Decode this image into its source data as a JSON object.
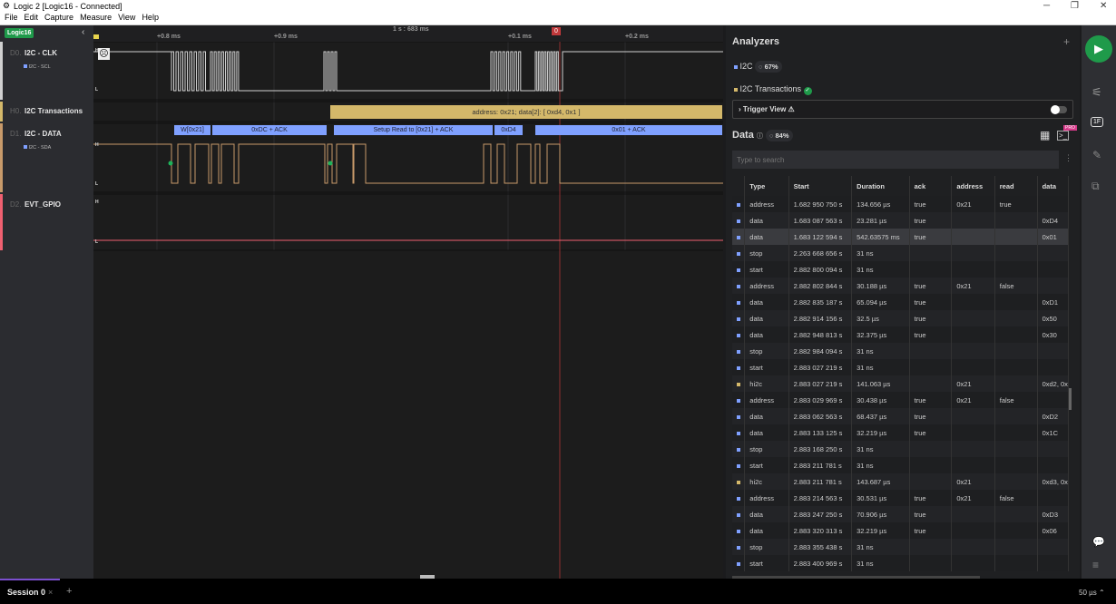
{
  "window": {
    "title": "Logic 2 [Logic16 - Connected]",
    "menu": [
      "File",
      "Edit",
      "Capture",
      "Measure",
      "View",
      "Help"
    ]
  },
  "device": {
    "badge": "Logic16"
  },
  "ruler": {
    "ticks": [
      "+0.8 ms",
      "+0.9 ms",
      "+0.1 ms",
      "+0.2 ms"
    ],
    "anchor": "1 s : 683 ms",
    "marker": "0"
  },
  "channels": [
    {
      "num": "D0.",
      "name": "I2C - CLK",
      "analyzer": "I2C - SCL",
      "color": "#d0d0d0"
    },
    {
      "num": "H0.",
      "name": "I2C Transactions",
      "color": "#d4b86a"
    },
    {
      "num": "D1.",
      "name": "I2C - DATA",
      "analyzer": "I2C - SDA",
      "color": "#c89a6a"
    },
    {
      "num": "D2.",
      "name": "EVT_GPIO",
      "color": "#f06070"
    }
  ],
  "levels": {
    "high": "H",
    "low": "L"
  },
  "transaction": "address: 0x21; data[2]: [ 0xd4, 0x1 ]",
  "frames": [
    "W[0x21]",
    "0xDC + ACK",
    "Setup Read to [0x21] + ACK",
    "0xD4",
    "0x01 + ACK"
  ],
  "analyzers": {
    "title": "Analyzers",
    "add": "+",
    "items": [
      {
        "name": "I2C",
        "progress": "67%",
        "color": "#7fa0ff"
      },
      {
        "name": "I2C Transactions",
        "color": "#d4b86a",
        "status": "complete"
      }
    ],
    "trigger": "Trigger View ⚠",
    "trigger_on": false
  },
  "data": {
    "title": "Data",
    "progress": "84%",
    "pro": "PRO",
    "search_placeholder": "Type to search",
    "columns": [
      "Type",
      "Start",
      "Duration",
      "ack",
      "address",
      "read",
      "data"
    ],
    "rows": [
      [
        "address",
        "1.682 950 750 s",
        "134.656 µs",
        "true",
        "0x21",
        "true",
        ""
      ],
      [
        "data",
        "1.683 087 563 s",
        "23.281 µs",
        "true",
        "",
        "",
        "0xD4"
      ],
      [
        "data",
        "1.683 122 594 s",
        "542.63575 ms",
        "true",
        "",
        "",
        "0x01"
      ],
      [
        "stop",
        "2.263 668 656 s",
        "31 ns",
        "",
        "",
        "",
        ""
      ],
      [
        "start",
        "2.882 800 094 s",
        "31 ns",
        "",
        "",
        "",
        ""
      ],
      [
        "address",
        "2.882 802 844 s",
        "30.188 µs",
        "true",
        "0x21",
        "false",
        ""
      ],
      [
        "data",
        "2.882 835 187 s",
        "65.094 µs",
        "true",
        "",
        "",
        "0xD1"
      ],
      [
        "data",
        "2.882 914 156 s",
        "32.5 µs",
        "true",
        "",
        "",
        "0x50"
      ],
      [
        "data",
        "2.882 948 813 s",
        "32.375 µs",
        "true",
        "",
        "",
        "0x30"
      ],
      [
        "stop",
        "2.882 984 094 s",
        "31 ns",
        "",
        "",
        "",
        ""
      ],
      [
        "start",
        "2.883 027 219 s",
        "31 ns",
        "",
        "",
        "",
        ""
      ],
      [
        "hi2c",
        "2.883 027 219 s",
        "141.063 µs",
        "",
        "0x21",
        "",
        "0xd2, 0x"
      ],
      [
        "address",
        "2.883 029 969 s",
        "30.438 µs",
        "true",
        "0x21",
        "false",
        ""
      ],
      [
        "data",
        "2.883 062 563 s",
        "68.437 µs",
        "true",
        "",
        "",
        "0xD2"
      ],
      [
        "data",
        "2.883 133 125 s",
        "32.219 µs",
        "true",
        "",
        "",
        "0x1C"
      ],
      [
        "stop",
        "2.883 168 250 s",
        "31 ns",
        "",
        "",
        "",
        ""
      ],
      [
        "start",
        "2.883 211 781 s",
        "31 ns",
        "",
        "",
        "",
        ""
      ],
      [
        "hi2c",
        "2.883 211 781 s",
        "143.687 µs",
        "",
        "0x21",
        "",
        "0xd3, 0x"
      ],
      [
        "address",
        "2.883 214 563 s",
        "30.531 µs",
        "true",
        "0x21",
        "false",
        ""
      ],
      [
        "data",
        "2.883 247 250 s",
        "70.906 µs",
        "true",
        "",
        "",
        "0xD3"
      ],
      [
        "data",
        "2.883 320 313 s",
        "32.219 µs",
        "true",
        "",
        "",
        "0x06"
      ],
      [
        "stop",
        "2.883 355 438 s",
        "31 ns",
        "",
        "",
        "",
        ""
      ],
      [
        "start",
        "2.883 400 969 s",
        "31 ns",
        "",
        "",
        "",
        ""
      ]
    ]
  },
  "session": {
    "tab": "Session 0",
    "close": "×",
    "add": "+"
  },
  "timescale": "50 µs ⌃"
}
